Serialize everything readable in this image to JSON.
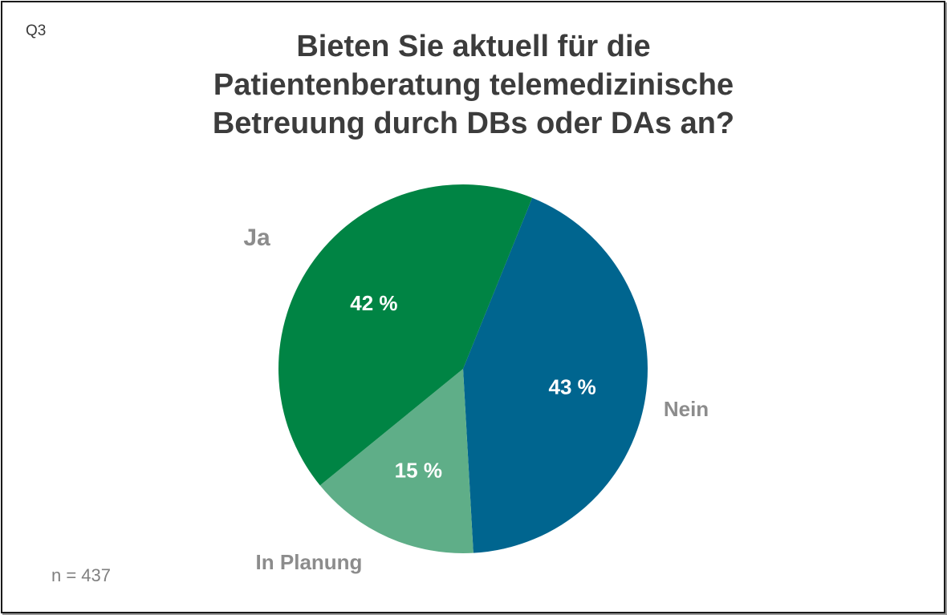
{
  "question_id": "Q3",
  "chart_data": {
    "type": "pie",
    "title_lines": [
      "Bieten Sie aktuell für die",
      "Patientenberatung telemedizinische",
      "Betreuung durch DBs oder DAs an?"
    ],
    "slices": [
      {
        "label": "Nein",
        "value": 43,
        "value_label": "43 %",
        "color": "#00658f"
      },
      {
        "label": "In Planung",
        "value": 15,
        "value_label": "15 %",
        "color": "#5fae88"
      },
      {
        "label": "Ja",
        "value": 42,
        "value_label": "42 %",
        "color": "#008444"
      }
    ],
    "start_angle_deg": 22,
    "direction": "clockwise",
    "category_label_color": "#8c8c8c",
    "value_label_color": "#ffffff"
  },
  "sample_size": "n = 437"
}
